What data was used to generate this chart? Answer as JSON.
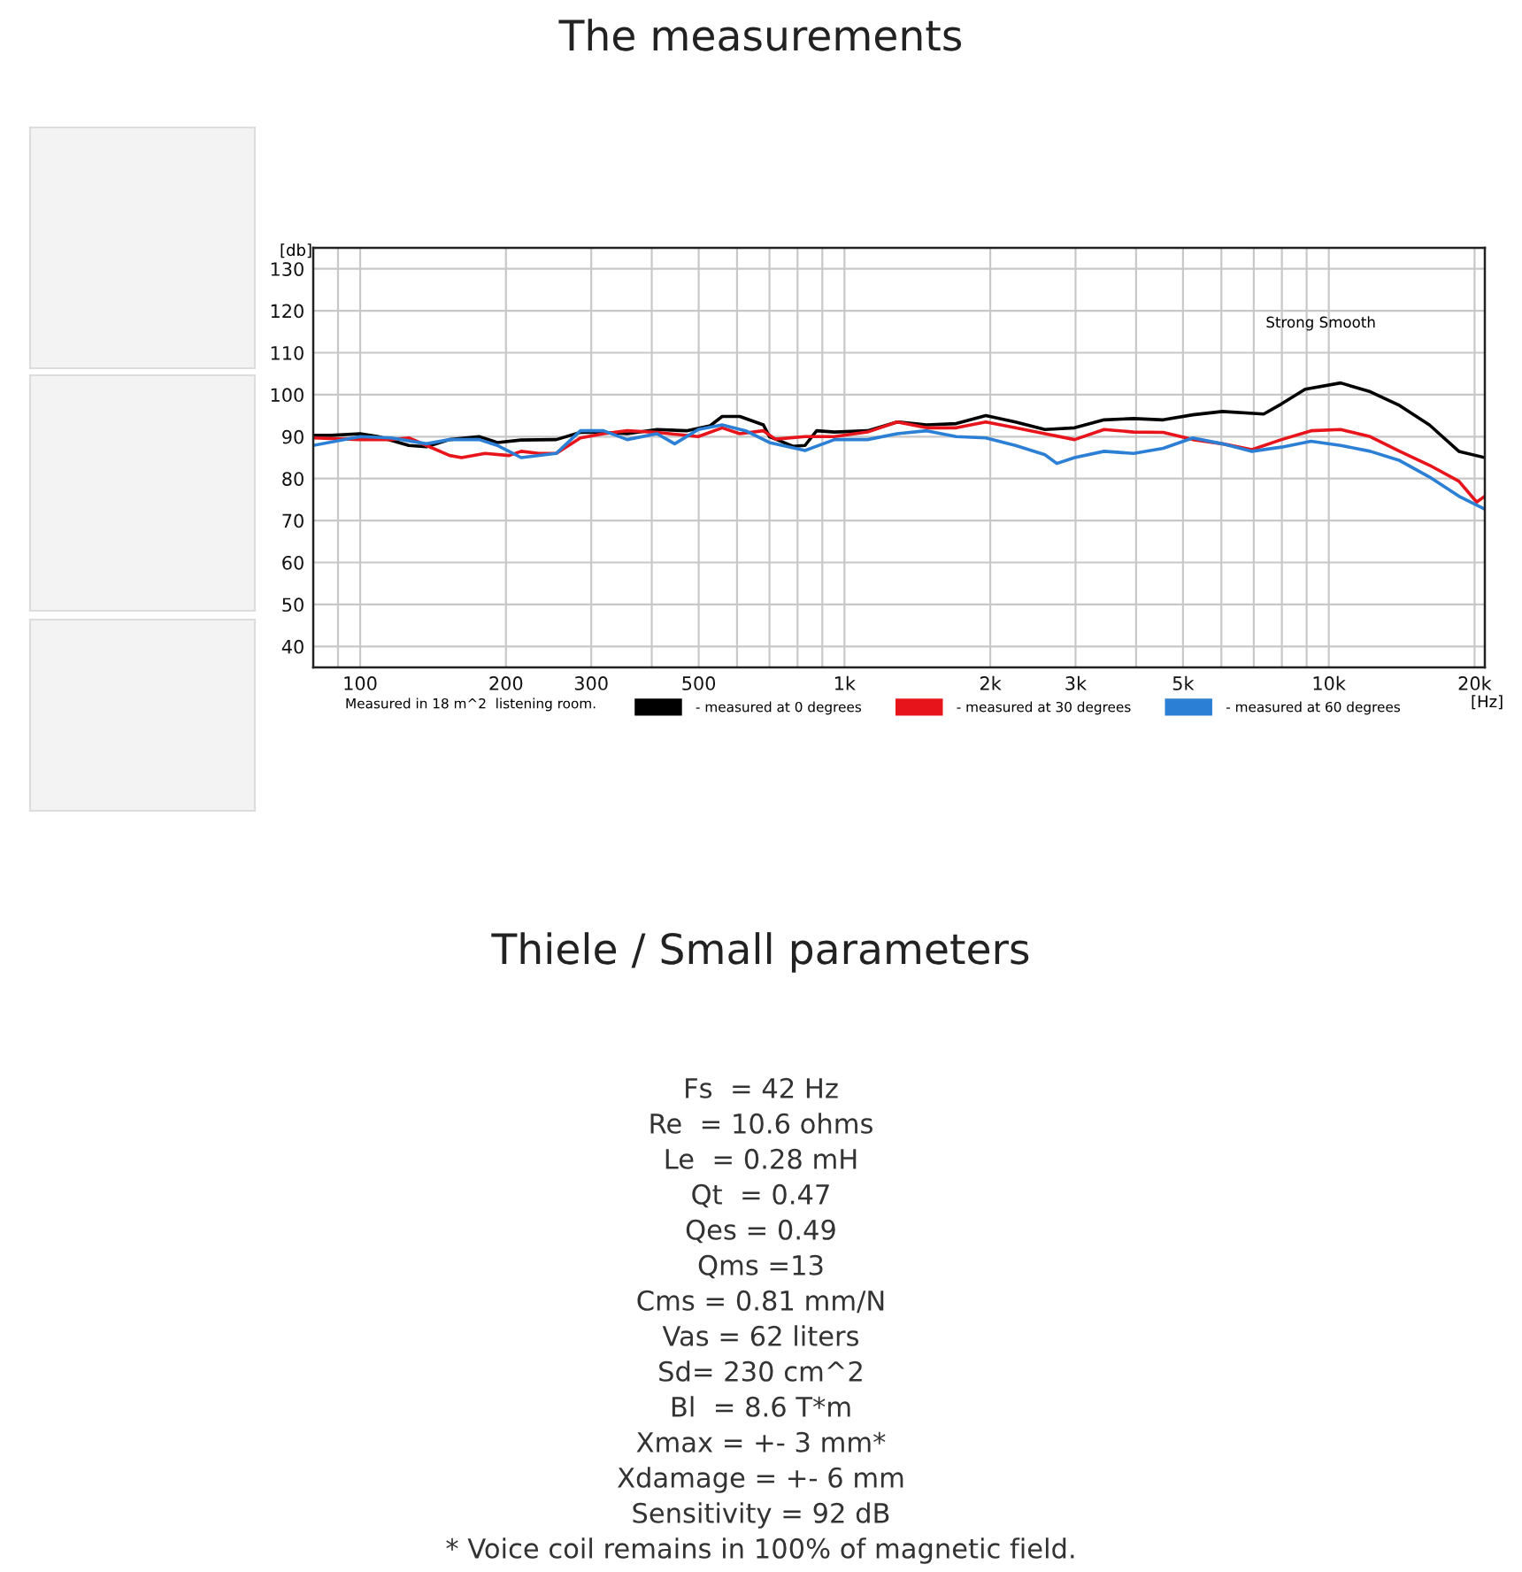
{
  "chart_data": {
    "type": "line",
    "title": "The measurements",
    "ylabel": "[db]",
    "xlabel": "[Hz]",
    "log": "x",
    "xlim": [
      80,
      21000
    ],
    "ylim": [
      35,
      135
    ],
    "xticks": [
      {
        "value": 90,
        "label": null
      },
      100,
      200,
      300,
      {
        "value": 400,
        "label": null
      },
      500,
      {
        "value": 600,
        "label": null
      },
      {
        "value": 700,
        "label": null
      },
      {
        "value": 800,
        "label": null
      },
      {
        "value": 900,
        "label": null
      },
      {
        "value": 1000,
        "label": "1k"
      },
      {
        "value": 2000,
        "label": "2k"
      },
      {
        "value": 3000,
        "label": "3k"
      },
      {
        "value": 4000,
        "label": null
      },
      {
        "value": 5000,
        "label": "5k"
      },
      {
        "value": 6000,
        "label": null
      },
      {
        "value": 7000,
        "label": null
      },
      {
        "value": 8000,
        "label": null
      },
      {
        "value": 9000,
        "label": null
      },
      {
        "value": 10000,
        "label": "10k"
      },
      {
        "value": 20000,
        "label": "20k"
      }
    ],
    "yticks": [
      40,
      50,
      60,
      70,
      80,
      90,
      100,
      110,
      120,
      130
    ],
    "grid": true,
    "legend": "bottom",
    "marker": "none",
    "line_style": "solid",
    "series": [
      {
        "name": "- measured at 0 degrees",
        "color": "#000000",
        "x": [
          80,
          87,
          100,
          109,
          126,
          137,
          153,
          176,
          192,
          215,
          254,
          285,
          318,
          356,
          410,
          472,
          528,
          559,
          608,
          680,
          700,
          783,
          829,
          876,
          954,
          1116,
          1285,
          1478,
          1701,
          1958,
          2254,
          2594,
          2985,
          3436,
          3955,
          4551,
          5239,
          6029,
          7339,
          7987,
          8938,
          10580,
          12180,
          14010,
          16130,
          18560,
          21000
        ],
        "values": [
          90.3,
          90.3,
          90.7,
          90,
          87.9,
          87.6,
          89.3,
          90,
          88.6,
          89.2,
          89.3,
          91,
          91,
          90.7,
          91.7,
          91.4,
          92.6,
          94.8,
          94.8,
          92.8,
          90,
          87.7,
          87.9,
          91.4,
          91.1,
          91.4,
          93.5,
          92.8,
          93.1,
          95,
          93.5,
          91.7,
          92.1,
          94,
          94.3,
          94,
          95.2,
          96,
          95.4,
          97.8,
          101.3,
          102.8,
          100.7,
          97.4,
          92.8,
          86.5,
          85
        ]
      },
      {
        "name": "- measured at 30 degrees",
        "color": "#e8141b",
        "x": [
          80,
          100,
          116,
          126,
          137,
          153,
          162,
          181,
          203,
          215,
          234,
          254,
          285,
          318,
          356,
          410,
          499,
          559,
          608,
          680,
          720,
          829,
          954,
          1116,
          1285,
          1478,
          1701,
          1958,
          2254,
          2594,
          2985,
          3436,
          3955,
          4551,
          5239,
          6029,
          6940,
          7987,
          9192,
          10580,
          12180,
          14010,
          16130,
          18560,
          20200,
          21000
        ],
        "values": [
          89.7,
          89.3,
          89.3,
          89.7,
          87.9,
          85.5,
          85,
          86,
          85.5,
          86.5,
          86,
          86,
          89.7,
          90.7,
          91.4,
          91,
          90,
          92.1,
          90.7,
          91.4,
          89.4,
          90,
          90,
          91.1,
          93.5,
          92.1,
          92.1,
          93.5,
          92.1,
          90.7,
          89.3,
          91.7,
          91.1,
          91,
          89.3,
          88.3,
          86.9,
          89.3,
          91.4,
          91.7,
          90,
          86.5,
          83.2,
          79.4,
          74.4,
          75.8
        ]
      },
      {
        "name": "- measured at 60 degrees",
        "color": "#2b7fd4",
        "x": [
          80,
          100,
          116,
          137,
          153,
          176,
          192,
          215,
          254,
          285,
          318,
          356,
          410,
          446,
          499,
          559,
          625,
          700,
          829,
          954,
          1116,
          1285,
          1478,
          1701,
          1958,
          2254,
          2594,
          2744,
          2985,
          3436,
          3955,
          4551,
          5239,
          6029,
          6940,
          7987,
          9192,
          10580,
          12180,
          14010,
          16130,
          18560,
          21000
        ],
        "values": [
          87.9,
          90,
          89.7,
          88.3,
          89.3,
          89.3,
          87.9,
          85,
          86,
          91.4,
          91.4,
          89.3,
          90.7,
          88.3,
          91.7,
          92.8,
          91.4,
          88.6,
          86.7,
          89.3,
          89.3,
          90.7,
          91.4,
          90,
          89.7,
          87.9,
          85.7,
          83.6,
          85,
          86.5,
          86,
          87.2,
          89.7,
          88.3,
          86.5,
          87.5,
          88.9,
          87.9,
          86.5,
          84.3,
          80.4,
          75.8,
          72.7
        ]
      }
    ],
    "annotations": [
      "Strong Smooth",
      "Measured in 18 m^2  listening room.",
      "Thiele / Small parameters",
      "Fs  = 42 Hz",
      "Re  = 10.6 ohms",
      "Le  = 0.28 mH",
      "Qt  = 0.47",
      "Qes = 0.49",
      "Qms =13",
      "Cms = 0.81 mm/N",
      "Vas = 62 liters",
      "Sd= 230 cm^2",
      "Bl  = 8.6 T*m",
      "Xmax = +- 3 mm*",
      "Xdamage = +- 6 mm",
      "Sensitivity = 92 dB",
      "* Voice coil remains in 100% of magnetic field."
    ]
  }
}
